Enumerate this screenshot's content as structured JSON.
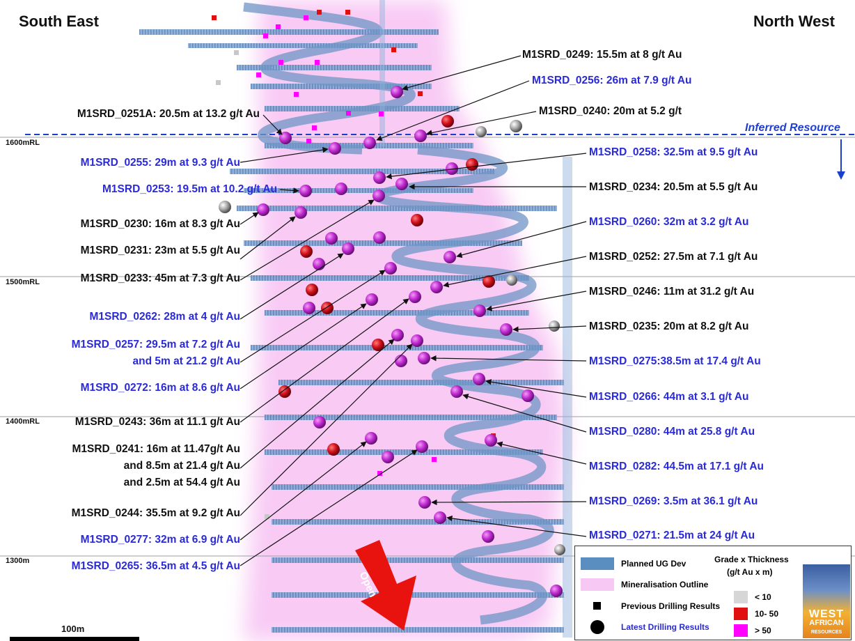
{
  "titles": {
    "left": "South East",
    "right": "North West"
  },
  "inferred_label": "Inferred Resource",
  "rl_levels": {
    "l1600": "1600mRL",
    "l1500": "1500mRL",
    "l1400": "1400mRL",
    "l1300": "1300m"
  },
  "labels": {
    "h0249": "M1SRD_0249: 15.5m at 8 g/t Au",
    "h0256": "M1SRD_0256: 26m at 7.9 g/t Au",
    "h0251a": "M1SRD_0251A: 20.5m at 13.2 g/t Au",
    "h0240": "M1SRD_0240: 20m at 5.2 g/t",
    "h0255": "M1SRD_0255: 29m at 9.3 g/t Au",
    "h0258": "M1SRD_0258: 32.5m at 9.5 g/t Au",
    "h0253": "M1SRD_0253: 19.5m at 10.2 g/t Au",
    "h0234": "M1SRD_0234: 20.5m at 5.5 g/t Au",
    "h0230": "M1SRD_0230: 16m at 8.3 g/t Au",
    "h0260": "M1SRD_0260: 32m at 3.2 g/t Au",
    "h0231": "M1SRD_0231: 23m at 5.5 g/t Au",
    "h0252": "M1SRD_0252: 27.5m at 7.1 g/t Au",
    "h0233": "M1SRD_0233: 45m at 7.3 g/t Au",
    "h0246": "M1SRD_0246: 11m at 31.2 g/t Au",
    "h0262": "M1SRD_0262: 28m at 4 g/t Au",
    "h0235": "M1SRD_0235: 20m at 8.2 g/t Au",
    "h0257a": "M1SRD_0257: 29.5m at 7.2 g/t Au",
    "h0257b": "and 5m at 21.2 g/t Au",
    "h0275": "M1SRD_0275:38.5m at 17.4 g/t Au",
    "h0272": "M1SRD_0272: 16m at 8.6 g/t Au",
    "h0266": "M1SRD_0266: 44m at 3.1 g/t Au",
    "h0243": "M1SRD_0243: 36m at 11.1 g/t Au",
    "h0280": "M1SRD_0280: 44m at 25.8 g/t Au",
    "h0241a": "M1SRD_0241: 16m at 11.47g/t Au",
    "h0241b": "and 8.5m at 21.4 g/t Au",
    "h0241c": "and 2.5m at 54.4 g/t Au",
    "h0282": "M1SRD_0282: 44.5m at 17.1 g/t Au",
    "h0269": "M1SRD_0269: 3.5m at 36.1 g/t Au",
    "h0244": "M1SRD_0244: 35.5m at 9.2 g/t Au",
    "h0277": "M1SRD_0277: 32m at 6.9 g/t Au",
    "h0271": "M1SRD_0271: 21.5m at 24 g/t Au",
    "h0265": "M1SRD_0265: 36.5m at 4.5 g/t Au"
  },
  "scale_label": "100m",
  "open_label": "Open",
  "legend": {
    "planned": "Planned UG Dev",
    "mineral": "Mineralisation Outline",
    "previous": "Previous Drilling Results",
    "latest": "Latest Drilling Results",
    "grade_title": "Grade x Thickness",
    "grade_unit": "(g/t Au x m)",
    "lt10": "< 10",
    "r10_50": "10- 50",
    "gt50": "> 50"
  },
  "logo": {
    "line1": "WEST",
    "line2": "AFRICAN",
    "line3": "RESOURCES"
  },
  "colors": {
    "magenta": "#c02ad0",
    "red": "#d0101c",
    "grey": "#9a9a9a",
    "pink_zone": "#f8c8f4",
    "ug_dev": "#5b8ec0",
    "blue_text": "#2a2ad6"
  }
}
